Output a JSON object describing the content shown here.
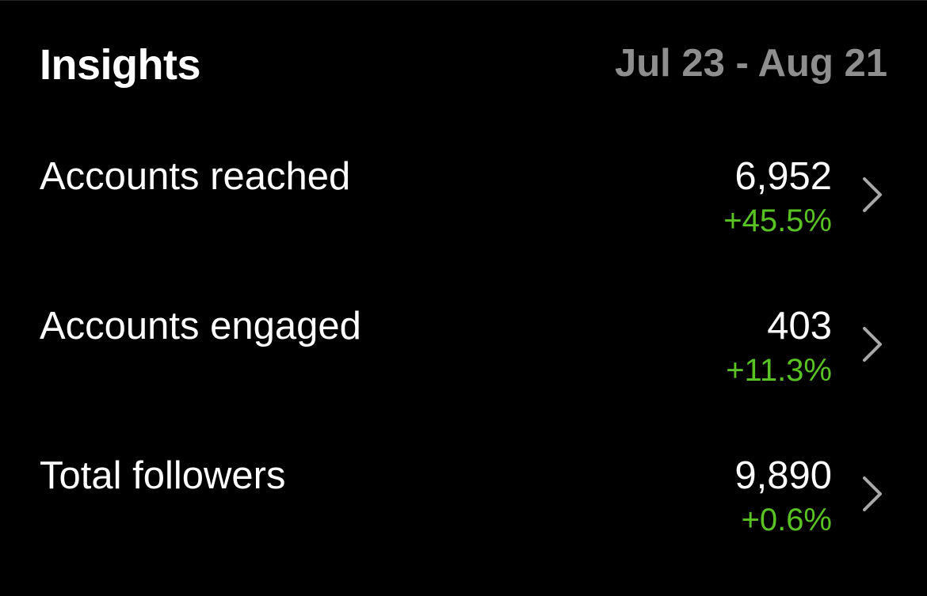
{
  "header": {
    "title": "Insights",
    "date_range": "Jul 23 - Aug 21"
  },
  "colors": {
    "background": "#000000",
    "text_primary": "#ffffff",
    "text_secondary": "#8e8e8e",
    "positive_change": "#58c322",
    "chevron": "#a8a8a8"
  },
  "metrics": [
    {
      "label": "Accounts reached",
      "value": "6,952",
      "change": "+45.5%",
      "icon": "chevron-right-icon"
    },
    {
      "label": "Accounts engaged",
      "value": "403",
      "change": "+11.3%",
      "icon": "chevron-right-icon"
    },
    {
      "label": "Total followers",
      "value": "9,890",
      "change": "+0.6%",
      "icon": "chevron-right-icon"
    }
  ]
}
